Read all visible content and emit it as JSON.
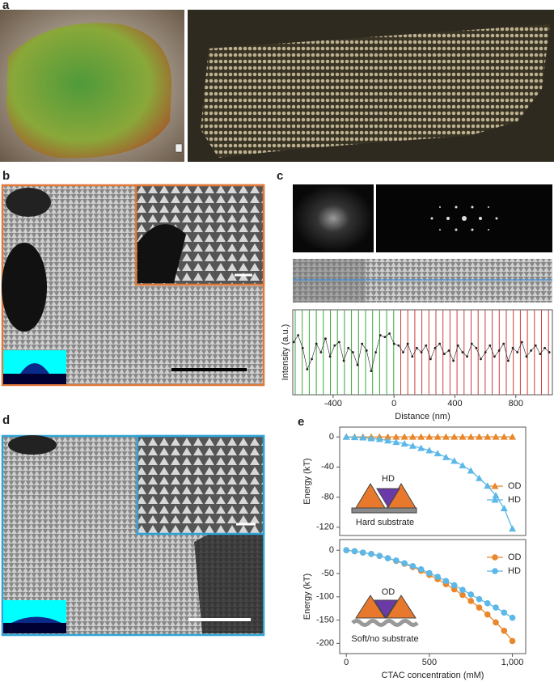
{
  "panel_labels": [
    "a",
    "b",
    "c",
    "d",
    "e"
  ],
  "chart_data": [
    {
      "type": "scatter",
      "y_label": "Intensity (a.u.)",
      "x_label": "Distance (nm)",
      "x": [
        -660,
        -630,
        -600,
        -570,
        -540,
        -510,
        -480,
        -450,
        -420,
        -390,
        -360,
        -330,
        -300,
        -270,
        -240,
        -210,
        -180,
        -150,
        -120,
        -90,
        -60,
        -30,
        0,
        30,
        60,
        90,
        120,
        150,
        180,
        210,
        240,
        270,
        300,
        330,
        360,
        390,
        420,
        450,
        480,
        510,
        540,
        570,
        600,
        630,
        660,
        690,
        720,
        750,
        780,
        810,
        840,
        870,
        900,
        930,
        960,
        990,
        1020
      ],
      "values": [
        0.62,
        0.7,
        0.55,
        0.3,
        0.42,
        0.6,
        0.5,
        0.66,
        0.45,
        0.58,
        0.62,
        0.4,
        0.55,
        0.5,
        0.35,
        0.6,
        0.52,
        0.28,
        0.5,
        0.7,
        0.68,
        0.72,
        0.6,
        0.58,
        0.5,
        0.6,
        0.45,
        0.55,
        0.5,
        0.58,
        0.42,
        0.55,
        0.6,
        0.48,
        0.52,
        0.4,
        0.58,
        0.5,
        0.45,
        0.6,
        0.55,
        0.42,
        0.5,
        0.58,
        0.45,
        0.52,
        0.6,
        0.4,
        0.55,
        0.5,
        0.62,
        0.45,
        0.52,
        0.58,
        0.48,
        0.55,
        0.5
      ],
      "color": "#222222",
      "xlim": [
        -665,
        1040
      ],
      "ylim": [
        0,
        1
      ],
      "xticks": [
        -400,
        0,
        400,
        800
      ]
    },
    {
      "type": "line",
      "y_label": "Energy (kT)",
      "annotation": "HD",
      "substrate_label": "Hard substrate",
      "x": [
        0,
        50,
        100,
        150,
        200,
        250,
        300,
        350,
        400,
        450,
        500,
        550,
        600,
        650,
        700,
        750,
        800,
        850,
        900,
        950,
        1000
      ],
      "series": [
        {
          "name": "OD",
          "color": "#e8872b",
          "marker": "triangle",
          "values": [
            0,
            0,
            0,
            0,
            0,
            0,
            0,
            0,
            0,
            0,
            0,
            0,
            0,
            0,
            0,
            0,
            0,
            0,
            0,
            0,
            0
          ]
        },
        {
          "name": "HD",
          "color": "#5bb8e8",
          "marker": "triangle",
          "values": [
            0,
            -0.5,
            -1,
            -2,
            -3,
            -5,
            -7,
            -9,
            -12,
            -15,
            -18,
            -22,
            -27,
            -32,
            -38,
            -45,
            -55,
            -65,
            -78,
            -95,
            -122
          ]
        }
      ],
      "xlim": [
        -40,
        1080
      ],
      "ylim": [
        -131,
        13
      ],
      "yticks": [
        0,
        -40,
        -80,
        -120
      ],
      "legend": "right"
    },
    {
      "type": "line",
      "y_label": "Energy (kT)",
      "x_label": "CTAC concentration (mM)",
      "annotation": "OD",
      "substrate_label": "Soft/no substrate",
      "x": [
        0,
        50,
        100,
        150,
        200,
        250,
        300,
        350,
        400,
        450,
        500,
        550,
        600,
        650,
        700,
        750,
        800,
        850,
        900,
        950,
        1000
      ],
      "series": [
        {
          "name": "OD",
          "color": "#e8872b",
          "marker": "circle",
          "values": [
            0,
            -2,
            -5,
            -8,
            -12,
            -17,
            -23,
            -29,
            -36,
            -44,
            -53,
            -62,
            -73,
            -84,
            -96,
            -109,
            -123,
            -138,
            -155,
            -173,
            -195
          ]
        },
        {
          "name": "HD",
          "color": "#5bb8e8",
          "marker": "circle",
          "values": [
            0,
            -2,
            -5,
            -8,
            -12,
            -17,
            -22,
            -28,
            -34,
            -41,
            -49,
            -57,
            -66,
            -75,
            -85,
            -95,
            -105,
            -114,
            -123,
            -134,
            -145
          ]
        }
      ],
      "xlim": [
        -40,
        1080
      ],
      "ylim": [
        -222,
        23
      ],
      "xticks": [
        0,
        500,
        {
          "value": 1000,
          "label": "1,000"
        }
      ],
      "yticks": [
        0,
        -50,
        -100,
        -150,
        -200
      ],
      "legend": "upper right"
    }
  ]
}
